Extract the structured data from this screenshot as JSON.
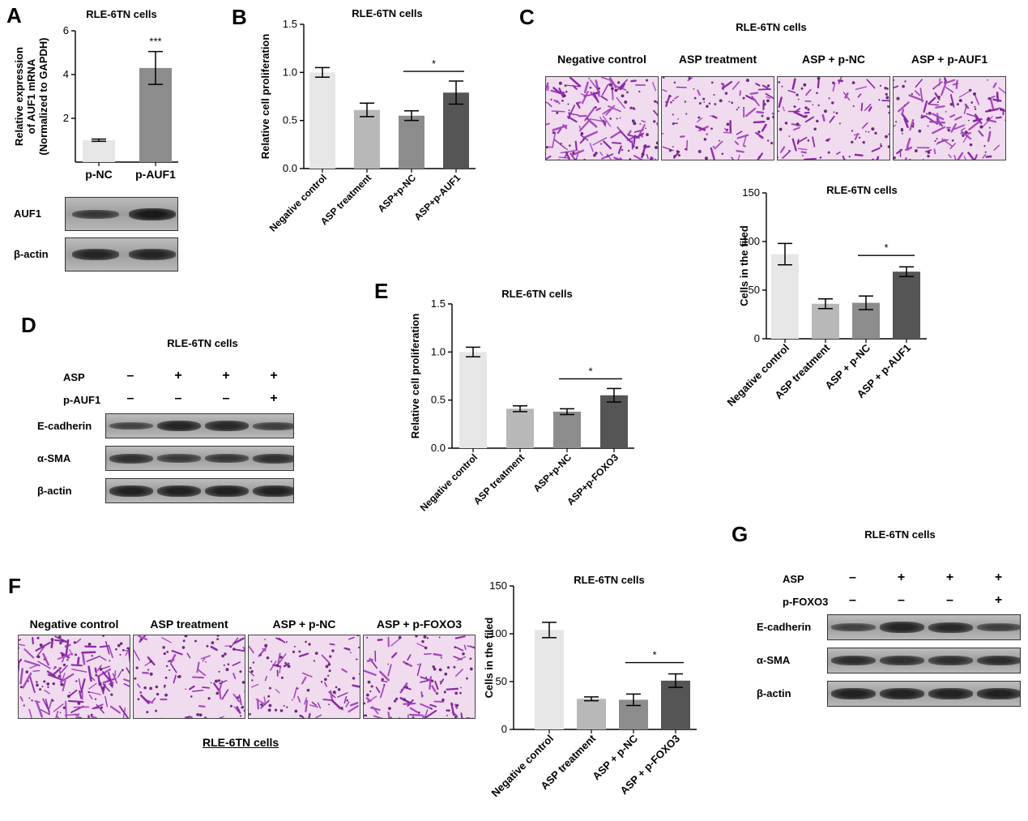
{
  "panels": {
    "A": {
      "letter": "A",
      "chart": {
        "type": "bar",
        "title": "RLE-6TN cells",
        "ylabel_lines": [
          "Relative expression",
          "of AUF1 mRNA",
          "(Normalized to GAPDH)"
        ],
        "categories": [
          "p-NC",
          "p-AUF1"
        ],
        "values": [
          1.0,
          4.3
        ],
        "errors": [
          0.05,
          0.75
        ],
        "colors": [
          "#e6e6e6",
          "#8c8c8c"
        ],
        "ylim": [
          0,
          6
        ],
        "yticks": [
          2,
          4,
          6
        ],
        "annotations": [
          {
            "bar": 1,
            "text": "***"
          }
        ],
        "xlabel_rotated": false
      },
      "blot": {
        "rows": [
          {
            "label": "AUF1",
            "bands": [
              0.6,
              1.0
            ]
          },
          {
            "label": "β-actin",
            "bands": [
              0.85,
              0.85
            ]
          }
        ]
      }
    },
    "B": {
      "letter": "B",
      "chart": {
        "type": "bar",
        "title": "RLE-6TN cells",
        "ylabel": "Relative cell proliferation",
        "categories": [
          "Negative control",
          "ASP treatment",
          "ASP+p-NC",
          "ASP+p-AUF1"
        ],
        "values": [
          1.0,
          0.61,
          0.55,
          0.79
        ],
        "errors": [
          0.05,
          0.07,
          0.05,
          0.12
        ],
        "colors": [
          "#e6e6e6",
          "#b8b8b8",
          "#8c8c8c",
          "#555555"
        ],
        "ylim": [
          0,
          1.5
        ],
        "yticks": [
          "0.0",
          "0.5",
          "1.0",
          "1.5"
        ],
        "sig": {
          "from": 2,
          "to": 3,
          "text": "*"
        },
        "xlabel_rotated": true
      }
    },
    "C": {
      "letter": "C",
      "micro_title": "RLE-6TN cells",
      "micro_labels": [
        "Negative control",
        "ASP treatment",
        "ASP + p-NC",
        "ASP + p-AUF1"
      ],
      "micro_density": [
        1.0,
        0.45,
        0.45,
        0.8
      ],
      "chart": {
        "type": "bar",
        "title": "RLE-6TN cells",
        "ylabel": "Cells in the filed",
        "categories": [
          "Negative control",
          "ASP treatment",
          "ASP + p-NC",
          "ASP + p-AUF1"
        ],
        "values": [
          87,
          36,
          37,
          69
        ],
        "errors": [
          11,
          5,
          7,
          5
        ],
        "colors": [
          "#e6e6e6",
          "#b8b8b8",
          "#8c8c8c",
          "#555555"
        ],
        "ylim": [
          0,
          150
        ],
        "yticks": [
          "0",
          "50",
          "100",
          "150"
        ],
        "sig": {
          "from": 2,
          "to": 3,
          "text": "*"
        },
        "xlabel_rotated": true
      }
    },
    "D": {
      "letter": "D",
      "title": "RLE-6TN cells",
      "treatments": [
        {
          "label": "ASP",
          "signs": [
            "–",
            "+",
            "+",
            "+"
          ]
        },
        {
          "label": "p-AUF1",
          "signs": [
            "–",
            "–",
            "–",
            "+"
          ]
        }
      ],
      "blot_rows": [
        {
          "label": "E-cadherin",
          "bands": [
            0.45,
            0.85,
            0.8,
            0.5
          ]
        },
        {
          "label": "α-SMA",
          "bands": [
            0.7,
            0.55,
            0.6,
            0.7
          ]
        },
        {
          "label": "β-actin",
          "bands": [
            0.9,
            0.9,
            0.9,
            0.9
          ]
        }
      ]
    },
    "E": {
      "letter": "E",
      "chart": {
        "type": "bar",
        "title": "RLE-6TN cells",
        "ylabel": "Relative cell proliferation",
        "categories": [
          "Negative control",
          "ASP treatment",
          "ASP+p-NC",
          "ASP+p-FOXO3"
        ],
        "values": [
          1.0,
          0.41,
          0.38,
          0.55
        ],
        "errors": [
          0.05,
          0.03,
          0.03,
          0.07
        ],
        "colors": [
          "#e6e6e6",
          "#b8b8b8",
          "#8c8c8c",
          "#555555"
        ],
        "ylim": [
          0,
          1.5
        ],
        "yticks": [
          "0.0",
          "0.5",
          "1.0",
          "1.5"
        ],
        "sig": {
          "from": 2,
          "to": 3,
          "text": "*"
        },
        "xlabel_rotated": true
      }
    },
    "F": {
      "letter": "F",
      "micro_labels": [
        "Negative control",
        "ASP treatment",
        "ASP + p-NC",
        "ASP + p-FOXO3"
      ],
      "micro_density": [
        1.0,
        0.45,
        0.45,
        0.6
      ],
      "micro_caption": "RLE-6TN cells",
      "chart": {
        "type": "bar",
        "title": "RLE-6TN cells",
        "ylabel": "Cells in the filed",
        "categories": [
          "Negative control",
          "ASP treatment",
          "ASP + p-NC",
          "ASP + p-FOXO3"
        ],
        "values": [
          104,
          32,
          31,
          51
        ],
        "errors": [
          8,
          2,
          6,
          7
        ],
        "colors": [
          "#e6e6e6",
          "#b8b8b8",
          "#8c8c8c",
          "#555555"
        ],
        "ylim": [
          0,
          150
        ],
        "yticks": [
          "0",
          "50",
          "100",
          "150"
        ],
        "sig": {
          "from": 2,
          "to": 3,
          "text": "*"
        },
        "xlabel_rotated": true
      }
    },
    "G": {
      "letter": "G",
      "title": "RLE-6TN cells",
      "treatments": [
        {
          "label": "ASP",
          "signs": [
            "–",
            "+",
            "+",
            "+"
          ]
        },
        {
          "label": "p-FOXO3",
          "signs": [
            "–",
            "–",
            "–",
            "+"
          ]
        }
      ],
      "blot_rows": [
        {
          "label": "E-cadherin",
          "bands": [
            0.45,
            0.85,
            0.8,
            0.5
          ]
        },
        {
          "label": "α-SMA",
          "bands": [
            0.75,
            0.7,
            0.7,
            0.75
          ]
        },
        {
          "label": "β-actin",
          "bands": [
            0.9,
            0.9,
            0.9,
            0.9
          ]
        }
      ]
    }
  },
  "chart_data": [
    {
      "panel": "A",
      "type": "bar",
      "title": "RLE-6TN cells",
      "ylabel": "Relative expression of AUF1 mRNA (Normalized to GAPDH)",
      "categories": [
        "p-NC",
        "p-AUF1"
      ],
      "values": [
        1.0,
        4.3
      ],
      "ylim": [
        0,
        6
      ]
    },
    {
      "panel": "B",
      "type": "bar",
      "title": "RLE-6TN cells",
      "ylabel": "Relative cell proliferation",
      "categories": [
        "Negative control",
        "ASP treatment",
        "ASP+p-NC",
        "ASP+p-AUF1"
      ],
      "values": [
        1.0,
        0.61,
        0.55,
        0.79
      ],
      "ylim": [
        0,
        1.5
      ]
    },
    {
      "panel": "C",
      "type": "bar",
      "title": "RLE-6TN cells",
      "ylabel": "Cells in the filed",
      "categories": [
        "Negative control",
        "ASP treatment",
        "ASP + p-NC",
        "ASP + p-AUF1"
      ],
      "values": [
        87,
        36,
        37,
        69
      ],
      "ylim": [
        0,
        150
      ]
    },
    {
      "panel": "E",
      "type": "bar",
      "title": "RLE-6TN cells",
      "ylabel": "Relative cell proliferation",
      "categories": [
        "Negative control",
        "ASP treatment",
        "ASP+p-NC",
        "ASP+p-FOXO3"
      ],
      "values": [
        1.0,
        0.41,
        0.38,
        0.55
      ],
      "ylim": [
        0,
        1.5
      ]
    },
    {
      "panel": "F",
      "type": "bar",
      "title": "RLE-6TN cells",
      "ylabel": "Cells in the filed",
      "categories": [
        "Negative control",
        "ASP treatment",
        "ASP + p-NC",
        "ASP + p-FOXO3"
      ],
      "values": [
        104,
        32,
        31,
        51
      ],
      "ylim": [
        0,
        150
      ]
    }
  ]
}
